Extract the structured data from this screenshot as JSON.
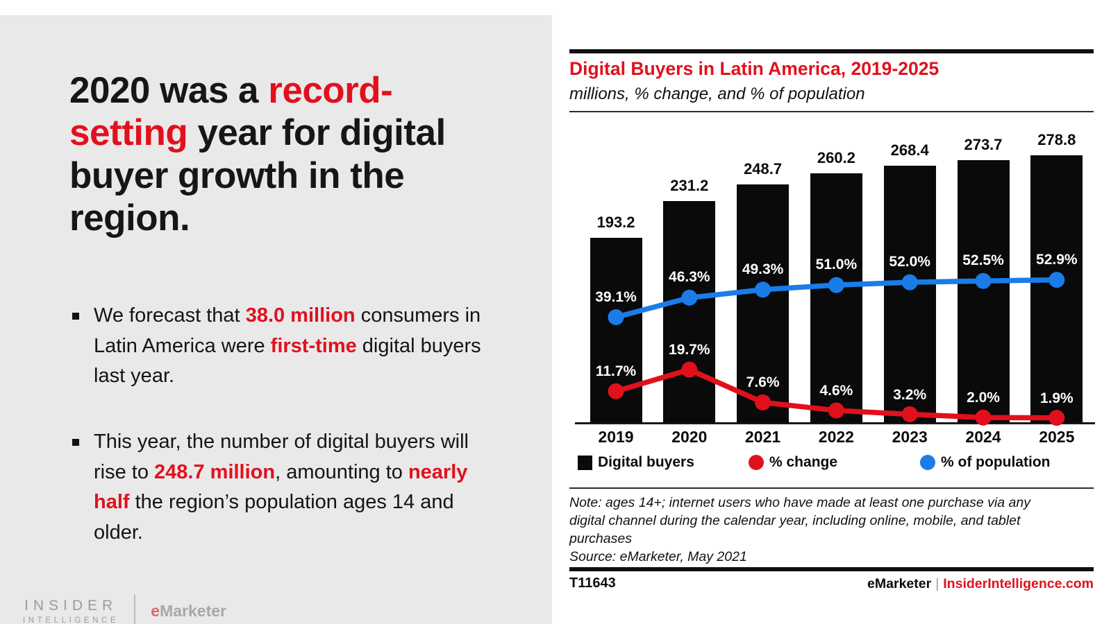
{
  "colors": {
    "red": "#e2101d",
    "blue": "#1a7ce8",
    "bar_black": "#0a0a0a",
    "panel_gray": "#e9e9e9"
  },
  "left_panel": {
    "headline_segments": [
      {
        "text": "2020 was a ",
        "red": false
      },
      {
        "text": "record-setting",
        "red": true
      },
      {
        "text": " year for digital buyer growth in the region.",
        "red": false
      }
    ],
    "bullets": [
      {
        "segments": [
          {
            "text": "We forecast that ",
            "red": false
          },
          {
            "text": "38.0 million",
            "red": true
          },
          {
            "text": " consumers in Latin America were ",
            "red": false
          },
          {
            "text": "first-time",
            "red": true
          },
          {
            "text": " digital buyers last year.",
            "red": false
          }
        ]
      },
      {
        "segments": [
          {
            "text": "This year, the number of digital buyers will rise to ",
            "red": false
          },
          {
            "text": "248.7 million",
            "red": true
          },
          {
            "text": ", amounting to ",
            "red": false
          },
          {
            "text": "nearly half",
            "red": true
          },
          {
            "text": " the region’s population ages 14 and older.",
            "red": false
          }
        ]
      }
    ],
    "logo": {
      "line1": "INSIDER",
      "line2": "INTELLIGENCE",
      "brand_e": "e",
      "brand_rest": "Marketer"
    }
  },
  "chart": {
    "title": "Digital Buyers in Latin America, 2019-2025",
    "subtitle": "millions, % change, and % of population",
    "legend": [
      {
        "label": "Digital buyers",
        "marker": "square",
        "color": "#0a0a0a"
      },
      {
        "label": "% change",
        "marker": "circle",
        "color": "#e2101d"
      },
      {
        "label": "% of population",
        "marker": "circle",
        "color": "#1a7ce8"
      }
    ],
    "note": "Note: ages 14+; internet users who have made at least one purchase via any digital channel during the calendar year, including online, mobile, and tablet purchases",
    "source": "Source: eMarketer, May 2021",
    "footer_left": "T11643",
    "footer_brand": "eMarketer",
    "footer_divider": "|",
    "footer_site": "InsiderIntelligence.com"
  },
  "chart_data": {
    "type": "bar",
    "categories": [
      "2019",
      "2020",
      "2021",
      "2022",
      "2023",
      "2024",
      "2025"
    ],
    "series": [
      {
        "name": "Digital buyers",
        "type": "bar",
        "unit": "millions",
        "color": "#0a0a0a",
        "values": [
          193.2,
          231.2,
          248.7,
          260.2,
          268.4,
          273.7,
          278.8
        ]
      },
      {
        "name": "% change",
        "type": "line",
        "unit": "%",
        "color": "#e2101d",
        "values": [
          11.7,
          19.7,
          7.6,
          4.6,
          3.2,
          2.0,
          1.9
        ]
      },
      {
        "name": "% of population",
        "type": "line",
        "unit": "%",
        "color": "#1a7ce8",
        "values": [
          39.1,
          46.3,
          49.3,
          51.0,
          52.0,
          52.5,
          52.9
        ]
      }
    ],
    "title": "Digital Buyers in Latin America, 2019-2025",
    "subtitle": "millions, % change, and % of population",
    "bar_axis_range": [
      0,
      300
    ],
    "pct_axis_range": [
      0,
      106.4
    ],
    "grid": false,
    "legend_position": "bottom",
    "data_labels": true
  }
}
